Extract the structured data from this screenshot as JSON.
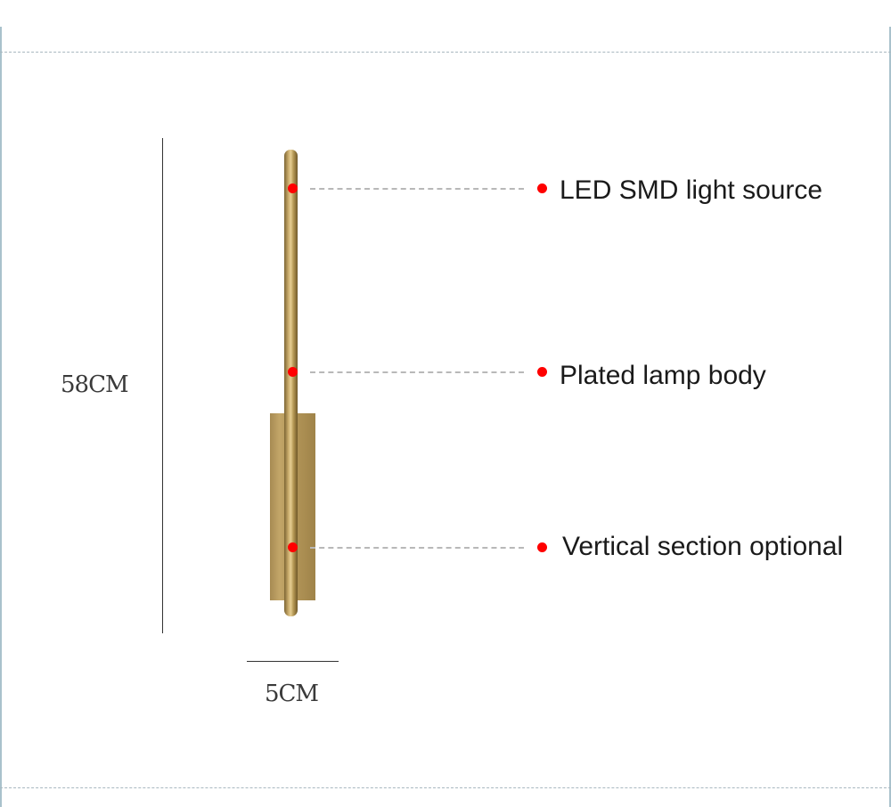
{
  "dimensions": {
    "height_label": "58CM",
    "width_label": "5CM"
  },
  "callouts": [
    {
      "label": "LED SMD light source"
    },
    {
      "label": "Plated lamp body"
    },
    {
      "label": "Vertical section optional"
    }
  ],
  "colors": {
    "marker": "#ff0000",
    "brass": "#c2a568",
    "frame": "#a9c2cc"
  }
}
